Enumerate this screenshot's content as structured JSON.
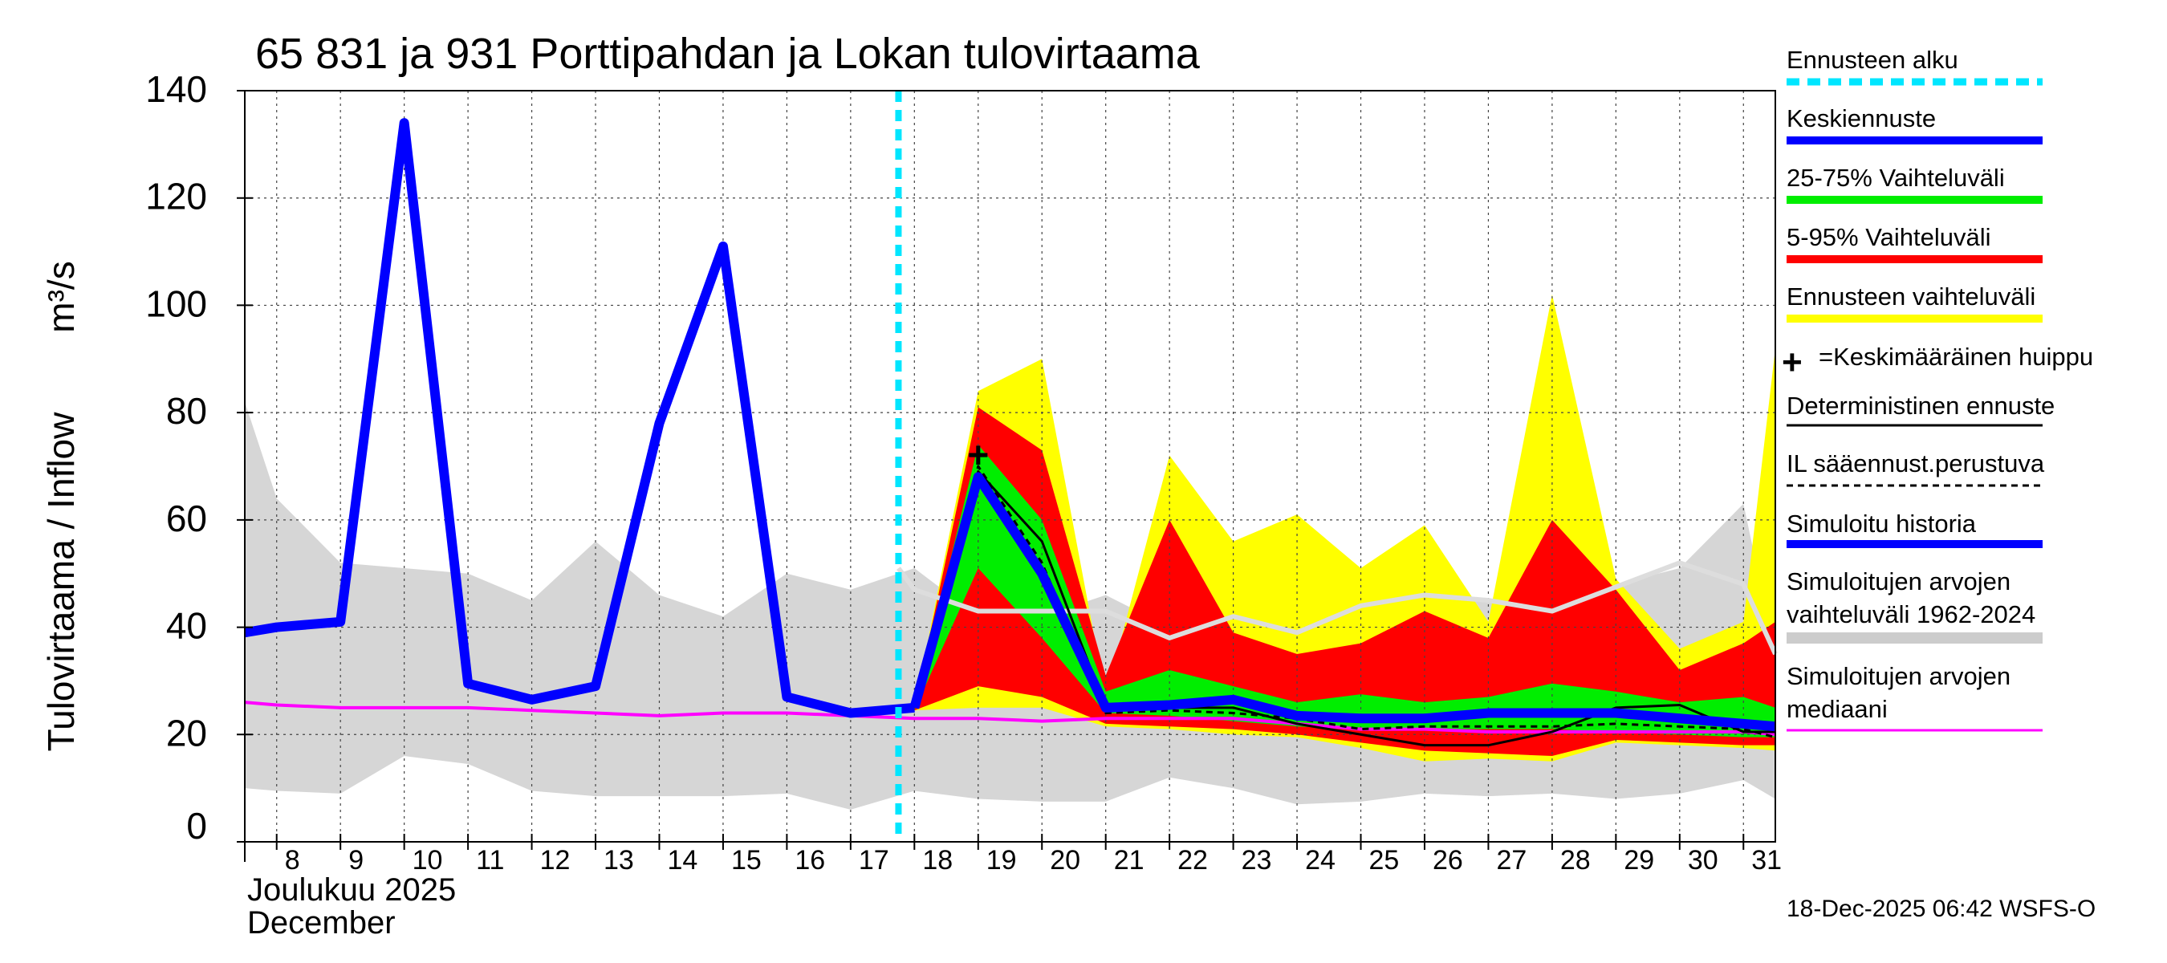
{
  "chart_data": {
    "type": "line",
    "title": "65 831 ja 931 Porttipahdan ja Lokan tulovirtaama",
    "ylabel": "Tulovirtaama / Inflow",
    "yunit": "m³/s",
    "ylim": [
      0,
      140
    ],
    "yticks": [
      0,
      20,
      40,
      60,
      80,
      100,
      120,
      140
    ],
    "xlim": [
      7.5,
      31.5
    ],
    "x_tick_labels": [
      "8",
      "9",
      "10",
      "11",
      "12",
      "13",
      "14",
      "15",
      "16",
      "17",
      "18",
      "19",
      "20",
      "21",
      "22",
      "23",
      "24",
      "25",
      "26",
      "27",
      "28",
      "29",
      "30",
      "31"
    ],
    "month_label_fi": "Joulukuu  2025",
    "month_label_en": "December",
    "forecast_start_day": 17.75,
    "footer": "18-Dec-2025 06:42 WSFS-O",
    "grid": true,
    "legend_items": [
      {
        "label": "Ennusteen alku",
        "color": "#00e6ff",
        "style": "dashed-thick"
      },
      {
        "label": "Keskiennuste",
        "color": "#0000ff",
        "style": "thick"
      },
      {
        "label": "25-75% Vaihteluväli",
        "color": "#00ee00",
        "style": "thick"
      },
      {
        "label": "5-95% Vaihteluväli",
        "color": "#ff0000",
        "style": "thick"
      },
      {
        "label": "Ennusteen vaihteluväli",
        "color": "#ffff00",
        "style": "thick"
      },
      {
        "label": "=Keskimääräinen huippu",
        "color": "#000000",
        "style": "plus"
      },
      {
        "label": "Deterministinen ennuste",
        "color": "#000000",
        "style": "thin"
      },
      {
        "label": "IL sääennust.perustuva",
        "color": "#000000",
        "style": "dashed"
      },
      {
        "label": "Simuloitu historia",
        "color": "#0000ff",
        "style": "thick"
      },
      {
        "label": "Simuloitujen arvojen\nvaihteluväli 1962-2024",
        "color": "#cccccc",
        "style": "band"
      },
      {
        "label": "Simuloitujen arvojen\nmediaani",
        "color": "#ff00ff",
        "style": "thin"
      }
    ],
    "series": [
      {
        "name": "Simuloitujen arvojen vaihteluväli 1962-2024",
        "type": "band",
        "color": "#d6d6d6",
        "x": [
          7.5,
          8,
          9,
          10,
          11,
          12,
          13,
          14,
          15,
          16,
          17,
          18,
          19,
          20,
          21,
          22,
          23,
          24,
          25,
          26,
          27,
          28,
          29,
          30,
          31,
          31.5
        ],
        "upper": [
          82,
          64,
          52,
          51,
          50,
          45,
          56,
          46,
          42,
          50,
          47,
          51,
          42,
          42,
          46,
          40,
          41,
          43,
          43,
          44,
          45,
          44,
          48,
          51,
          63,
          35
        ],
        "lower": [
          10,
          9.5,
          9,
          16,
          14.5,
          9.5,
          8.5,
          8.5,
          8.5,
          9,
          6,
          9.5,
          8,
          7.5,
          7.5,
          12,
          10,
          7,
          7.5,
          9,
          8.5,
          9,
          8,
          9,
          11.5,
          8
        ]
      },
      {
        "name": "Ennusteen vaihteluväli",
        "type": "band",
        "color": "#ffff00",
        "x": [
          17.75,
          18,
          19,
          20,
          21,
          22,
          23,
          24,
          25,
          26,
          27,
          28,
          29,
          30,
          31,
          31.5
        ],
        "upper": [
          24,
          25,
          84,
          90,
          27,
          72,
          56,
          61,
          51,
          59,
          41,
          102,
          49,
          36,
          41,
          92
        ],
        "lower": [
          24,
          24.5,
          25,
          25,
          21.5,
          21,
          20,
          19.5,
          17.5,
          15,
          15.5,
          15,
          18.5,
          18,
          17.5,
          17
        ]
      },
      {
        "name": "5-95% Vaihteluväli",
        "type": "band",
        "color": "#ff0000",
        "x": [
          17.75,
          18,
          19,
          20,
          21,
          22,
          23,
          24,
          25,
          26,
          27,
          28,
          29,
          30,
          31,
          31.5
        ],
        "upper": [
          24,
          25,
          81,
          73,
          31,
          60,
          39,
          35,
          37,
          43,
          38,
          60,
          47,
          32,
          37,
          41
        ],
        "lower": [
          24,
          24.5,
          29,
          27,
          22,
          21.5,
          21,
          20,
          18.5,
          17,
          16.5,
          16,
          19,
          18.5,
          18,
          18
        ]
      },
      {
        "name": "25-75% Vaihteluväli",
        "type": "band",
        "color": "#00ee00",
        "x": [
          17.75,
          18,
          19,
          20,
          21,
          22,
          23,
          24,
          25,
          26,
          27,
          28,
          29,
          30,
          31,
          31.5
        ],
        "upper": [
          24,
          25,
          74,
          60,
          28,
          32,
          29,
          26,
          27.5,
          26,
          27,
          29.5,
          28,
          26,
          27,
          25
        ],
        "lower": [
          24,
          24.5,
          51,
          38,
          24,
          23.5,
          22.5,
          21.5,
          21,
          21,
          21,
          21,
          20.5,
          20,
          19.5,
          19.5
        ]
      },
      {
        "name": "Simuloitujen arvojen mediaani",
        "type": "line",
        "color": "#ff00ff",
        "x": [
          7.5,
          8,
          9,
          10,
          11,
          12,
          13,
          14,
          15,
          16,
          17,
          18,
          19,
          20,
          21,
          22,
          23,
          24,
          25,
          26,
          27,
          28,
          29,
          30,
          31,
          31.5
        ],
        "y": [
          26,
          25.5,
          25,
          25,
          25,
          24.5,
          24,
          23.5,
          24,
          24,
          23.5,
          23,
          23,
          22.5,
          23,
          23,
          23,
          22,
          21,
          21,
          20.5,
          20.5,
          20.5,
          20.5,
          20.5,
          20
        ]
      },
      {
        "name": "Simuloitujen arvojen mediaani (ennuste)",
        "type": "line",
        "color": "#dddddd",
        "x": [
          17.75,
          18,
          19,
          20,
          21,
          22,
          23,
          24,
          25,
          26,
          27,
          28,
          29,
          30,
          31,
          31.5
        ],
        "y": [
          51,
          47,
          43,
          43,
          43,
          38,
          42,
          39,
          44,
          46,
          45,
          43,
          47.5,
          52,
          48,
          35
        ]
      },
      {
        "name": "IL sääennust.perustuva",
        "type": "line",
        "color": "#000000",
        "dash": true,
        "x": [
          18,
          19,
          20,
          21,
          22,
          23,
          24,
          25,
          26,
          27,
          28,
          29,
          30,
          31,
          31.5
        ],
        "y": [
          25,
          70,
          52,
          24,
          24.5,
          24,
          23,
          21,
          21.5,
          21.5,
          21.5,
          22,
          21.5,
          21,
          19.5
        ]
      },
      {
        "name": "Deterministinen ennuste",
        "type": "line",
        "color": "#000000",
        "x": [
          18,
          19,
          20,
          21,
          22,
          23,
          24,
          25,
          26,
          27,
          28,
          29,
          30,
          31,
          31.5
        ],
        "y": [
          25,
          69,
          56,
          25,
          25,
          25,
          22,
          20,
          18,
          18,
          20.5,
          25,
          25.5,
          20.5,
          20.5
        ]
      },
      {
        "name": "Keskiennuste",
        "type": "line",
        "color": "#0000ff",
        "x": [
          18,
          19,
          20,
          21,
          22,
          23,
          24,
          25,
          26,
          27,
          28,
          29,
          30,
          31,
          31.5
        ],
        "y": [
          25,
          68,
          50,
          25,
          25.5,
          26.5,
          23.5,
          23,
          23,
          24,
          24,
          24,
          23,
          22,
          21.5
        ]
      },
      {
        "name": "Simuloitu historia",
        "type": "line",
        "color": "#0000ff",
        "x": [
          7.5,
          8,
          9,
          10,
          11,
          12,
          13,
          14,
          15,
          16,
          17,
          18
        ],
        "y": [
          39,
          40,
          41,
          134,
          29.5,
          26.5,
          29,
          78,
          111,
          27,
          24,
          25
        ]
      }
    ],
    "peak_marker": {
      "x": 19,
      "y": 72,
      "label": "+"
    }
  }
}
